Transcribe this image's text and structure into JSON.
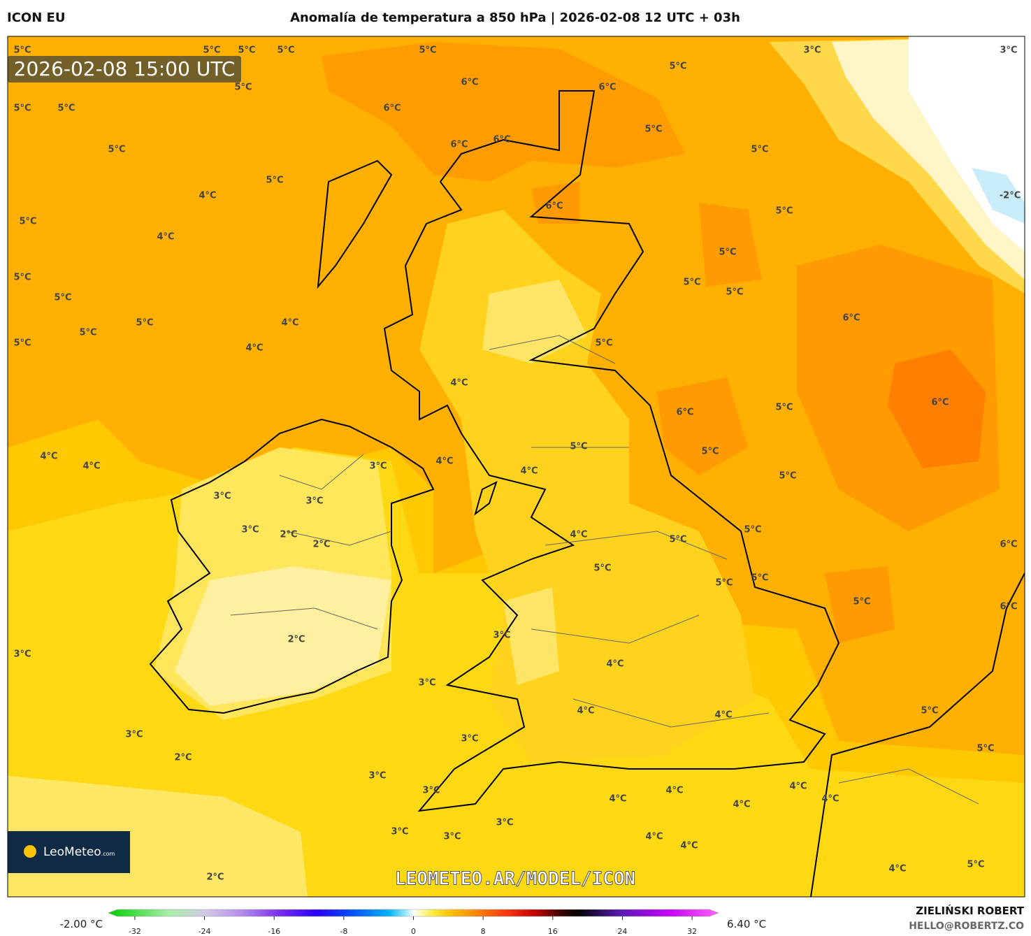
{
  "header": {
    "model": "ICON EU",
    "title": "Anomalía de temperatura a 850 hPa | 2026-02-08 12 UTC + 03h"
  },
  "timestamp": "2026-02-08 15:00 UTC",
  "contour_labels": [
    "5°C",
    "5°C",
    "5°C",
    "5°C",
    "5°C",
    "3°C",
    "3°C",
    "5°C",
    "5°C",
    "6°C",
    "6°C",
    "5°C",
    "5°C",
    "6°C",
    "5°C",
    "6°C",
    "6°C",
    "5°C",
    "5°C",
    "5°C",
    "4°C",
    "-2°C",
    "6°C",
    "5°C",
    "5°C",
    "4°C",
    "5°C",
    "5°C",
    "5°C",
    "5°C",
    "5°C",
    "6°C",
    "5°C",
    "4°C",
    "5°C",
    "5°C",
    "5°C",
    "4°C",
    "4°C",
    "6°C",
    "6°C",
    "5°C",
    "5°C",
    "5°C",
    "4°C",
    "4°C",
    "4°C",
    "3°C",
    "4°C",
    "5°C",
    "3°C",
    "3°C",
    "3°C",
    "5°C",
    "2°C",
    "4°C",
    "5°C",
    "2°C",
    "6°C",
    "5°C",
    "5°C",
    "5°C",
    "5°C",
    "6°C",
    "3°C",
    "2°C",
    "3°C",
    "4°C",
    "3°C",
    "4°C",
    "4°C",
    "5°C",
    "3°C",
    "3°C",
    "5°C",
    "2°C",
    "3°C",
    "4°C",
    "3°C",
    "4°C",
    "4°C",
    "4°C",
    "4°C",
    "3°C",
    "3°C",
    "3°C",
    "4°C",
    "4°C",
    "4°C",
    "5°C",
    "2°C"
  ],
  "watermark": "LEOMETEO.AR/MODEL/ICON",
  "logo": {
    "name": "LeoMeteo",
    "suffix": ".com"
  },
  "colorbar": {
    "min_label": "-2.00 °C",
    "max_label": "6.40 °C",
    "range": [
      -34,
      34
    ],
    "ticks": [
      -32,
      -24,
      -16,
      -8,
      0,
      8,
      16,
      24,
      32
    ]
  },
  "credits": {
    "author": "ZIELIŃSKI ROBERT",
    "email": "HELLO@ROBERTZ.CO"
  }
}
